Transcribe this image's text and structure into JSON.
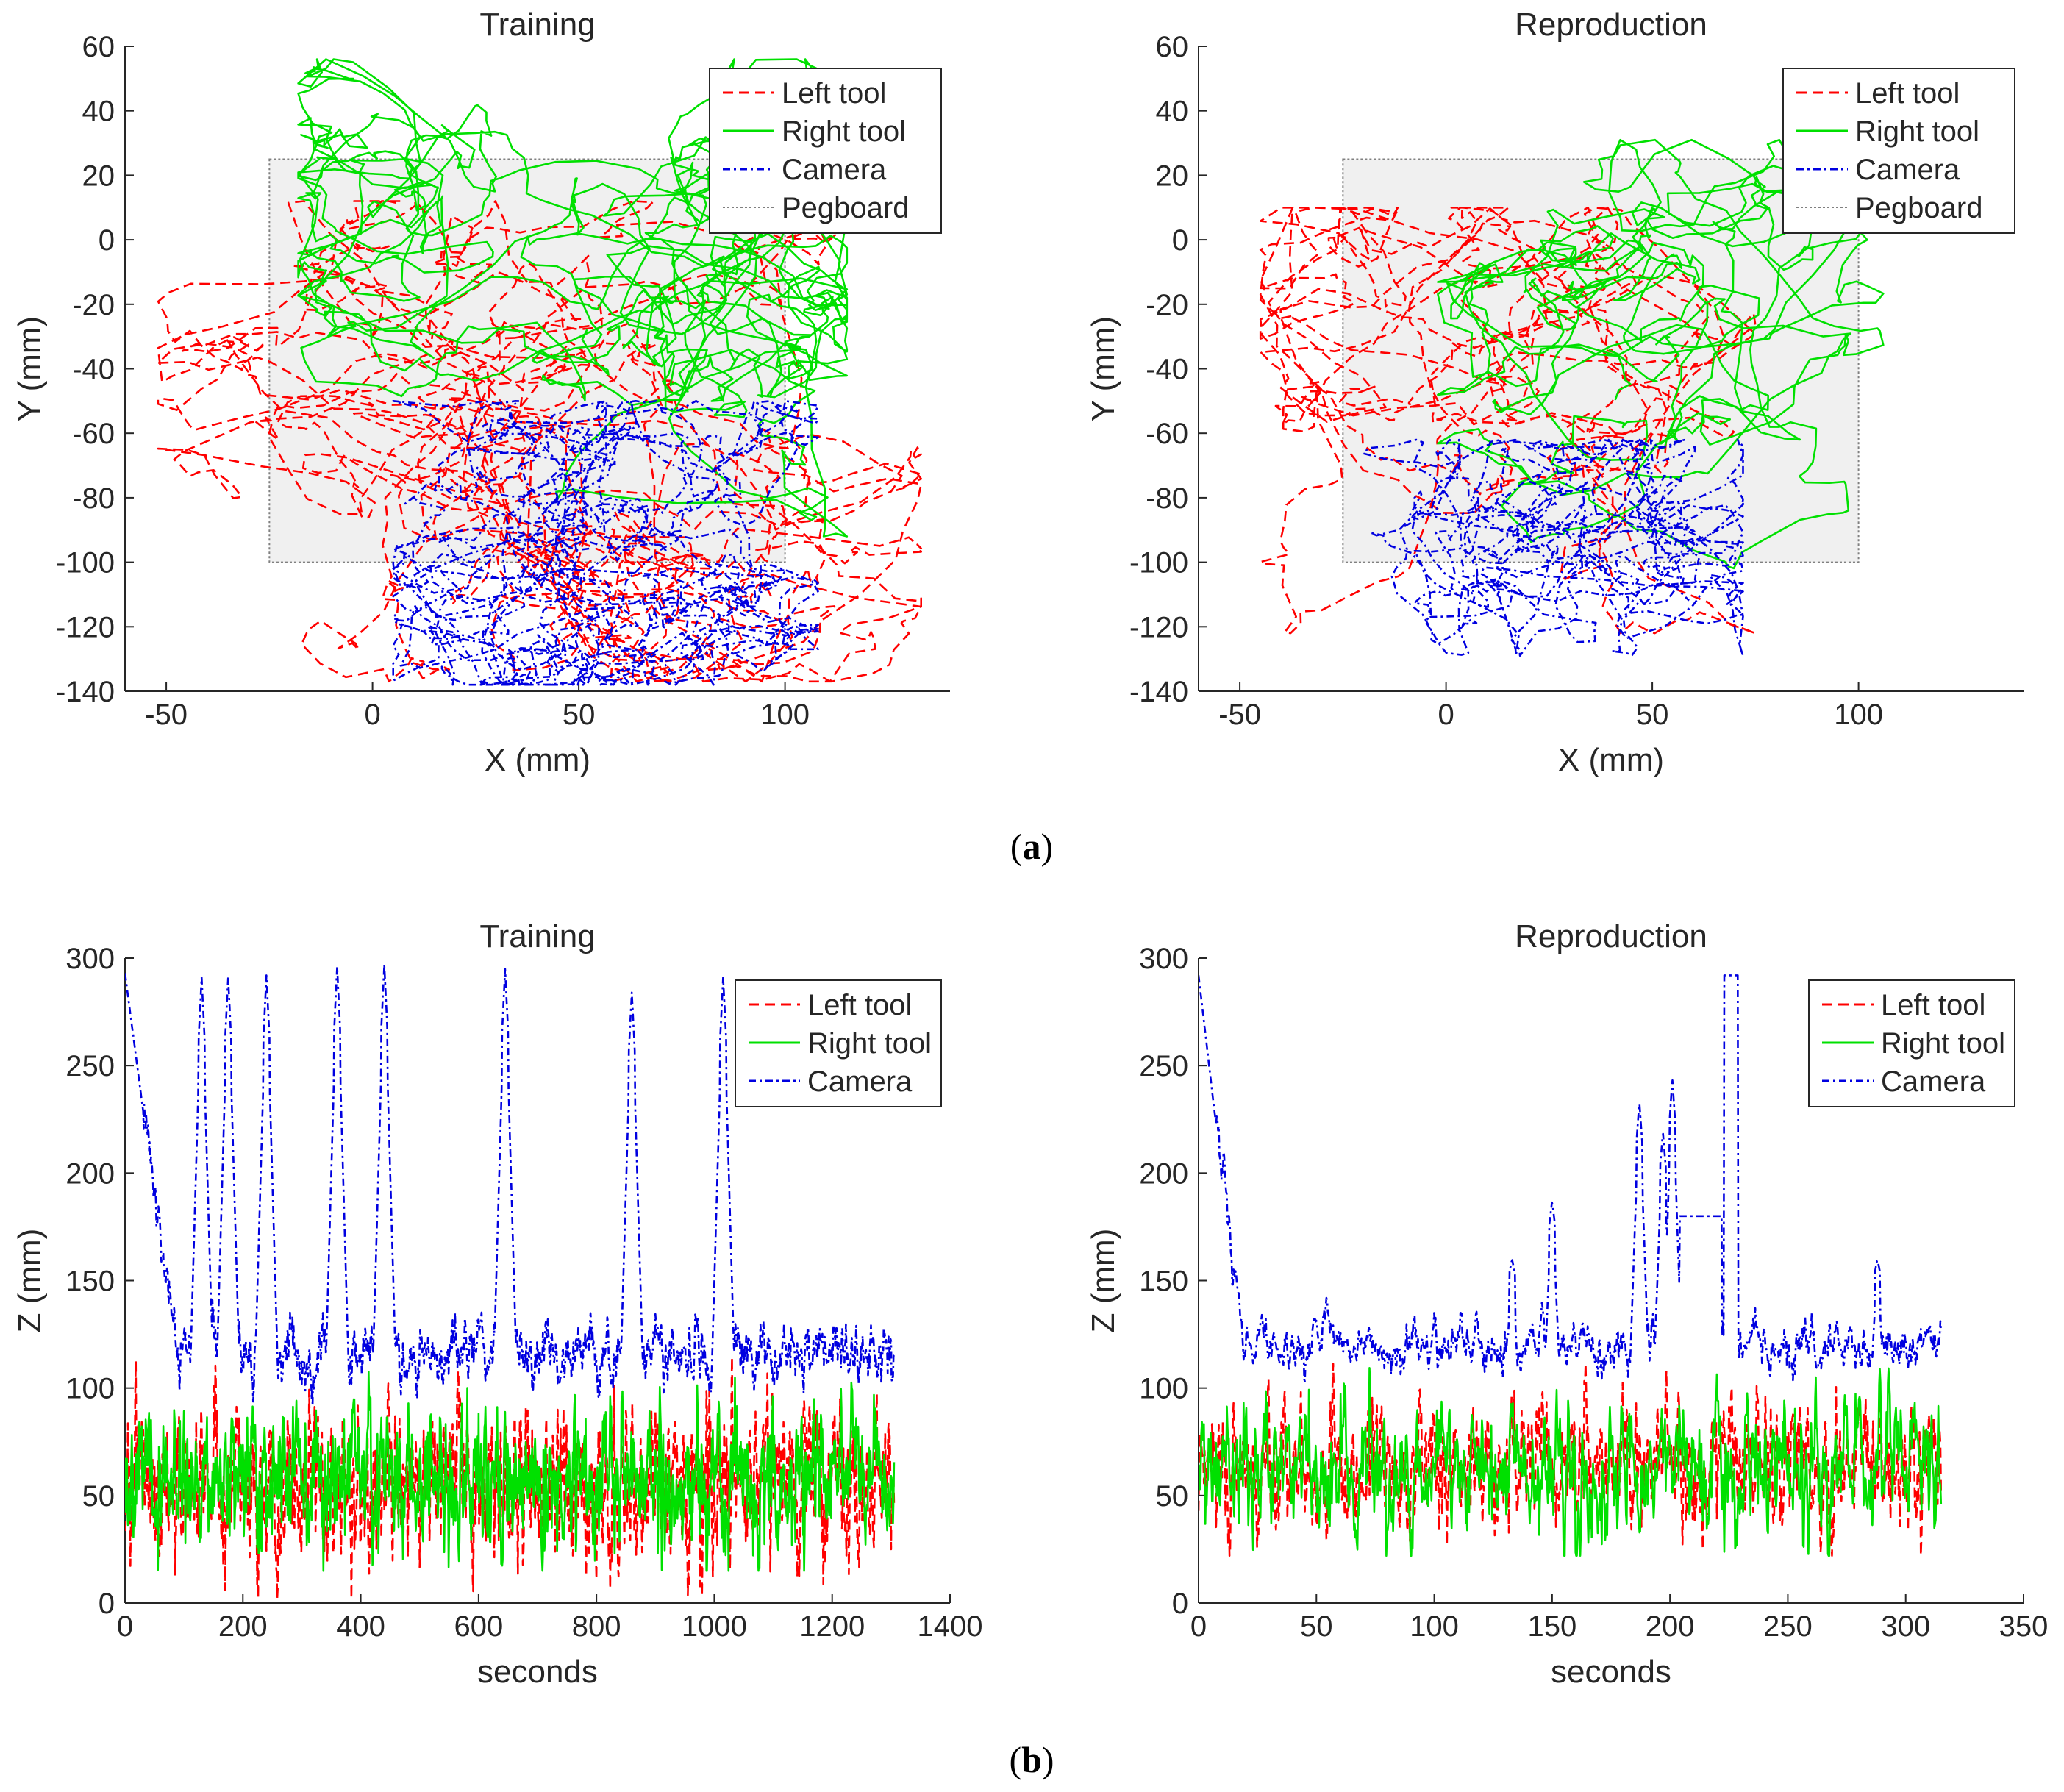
{
  "figure": {
    "caption_a_prefix": "(",
    "caption_a_letter": "a",
    "caption_a_suffix": ")",
    "caption_b_prefix": "(",
    "caption_b_letter": "b",
    "caption_b_suffix": ")"
  },
  "colors": {
    "left_tool": "#ff0000",
    "right_tool": "#00e000",
    "camera": "#0000e0",
    "pegboard_fill": "#f0f0f0",
    "pegboard_edge": "#808080"
  },
  "chart_data": [
    {
      "id": "xy-training",
      "type": "line",
      "title": "Training",
      "xlabel": "X (mm)",
      "ylabel": "Y (mm)",
      "xlim": [
        -60,
        140
      ],
      "ylim": [
        -140,
        60
      ],
      "xticks": [
        -50,
        0,
        50,
        100
      ],
      "yticks": [
        -140,
        -120,
        -100,
        -80,
        -60,
        -40,
        -20,
        0,
        20,
        40,
        60
      ],
      "legend": [
        "Left tool",
        "Right tool",
        "Camera",
        "Pegboard"
      ],
      "legend_position": "top-right",
      "pegboard": {
        "x0": -25,
        "x1": 100,
        "y0": -100,
        "y1": 25
      },
      "series": [
        {
          "name": "Left tool",
          "style": "dashed",
          "center": [
            45,
            -45
          ],
          "spread": [
            55,
            45
          ],
          "xrange": [
            -52,
            133
          ],
          "yrange": [
            -137,
            12
          ],
          "n": 1300,
          "seed": 11,
          "step": 7
        },
        {
          "name": "Right tool",
          "style": "solid",
          "center": [
            55,
            -25
          ],
          "spread": [
            40,
            30
          ],
          "xrange": [
            -18,
            115
          ],
          "yrange": [
            -92,
            56
          ],
          "n": 1300,
          "seed": 23,
          "step": 6
        },
        {
          "name": "Camera",
          "style": "dashdot",
          "center": [
            55,
            -100
          ],
          "spread": [
            30,
            18
          ],
          "xrange": [
            5,
            108
          ],
          "yrange": [
            -138,
            -50
          ],
          "n": 1300,
          "seed": 37,
          "step": 5
        }
      ]
    },
    {
      "id": "xy-reproduction",
      "type": "line",
      "title": "Reproduction",
      "xlabel": "X (mm)",
      "ylabel": "Y (mm)",
      "xlim": [
        -60,
        140
      ],
      "ylim": [
        -140,
        60
      ],
      "xticks": [
        -50,
        0,
        50,
        100
      ],
      "yticks": [
        -140,
        -120,
        -100,
        -80,
        -60,
        -40,
        -20,
        0,
        20,
        40,
        60
      ],
      "legend": [
        "Left tool",
        "Right tool",
        "Camera",
        "Pegboard"
      ],
      "legend_position": "top-right",
      "pegboard": {
        "x0": -25,
        "x1": 100,
        "y0": -100,
        "y1": 25
      },
      "series": [
        {
          "name": "Left tool",
          "style": "dashed",
          "center": [
            15,
            -40
          ],
          "spread": [
            35,
            35
          ],
          "xrange": [
            -45,
            75
          ],
          "yrange": [
            -122,
            10
          ],
          "n": 700,
          "seed": 51,
          "step": 7
        },
        {
          "name": "Right tool",
          "style": "solid",
          "center": [
            35,
            -35
          ],
          "spread": [
            30,
            35
          ],
          "xrange": [
            -2,
            106
          ],
          "yrange": [
            -110,
            31
          ],
          "n": 700,
          "seed": 63,
          "step": 6
        },
        {
          "name": "Camera",
          "style": "dashdot",
          "center": [
            35,
            -95
          ],
          "spread": [
            25,
            15
          ],
          "xrange": [
            -20,
            72
          ],
          "yrange": [
            -129,
            -62
          ],
          "n": 800,
          "seed": 77,
          "step": 5
        }
      ]
    },
    {
      "id": "z-training",
      "type": "line",
      "title": "Training",
      "xlabel": "seconds",
      "ylabel": "Z (mm)",
      "xlim": [
        0,
        1400
      ],
      "ylim": [
        0,
        300
      ],
      "xticks": [
        0,
        200,
        400,
        600,
        800,
        1000,
        1200,
        1400
      ],
      "yticks": [
        0,
        50,
        100,
        150,
        200,
        250,
        300
      ],
      "legend": [
        "Left tool",
        "Right tool",
        "Camera"
      ],
      "legend_position": "top-right",
      "duration": 1305,
      "series": [
        {
          "name": "Left tool",
          "style": "dashed",
          "base": 55,
          "amp": 16,
          "min": 2,
          "max": 117,
          "seed": 101
        },
        {
          "name": "Right tool",
          "style": "solid",
          "base": 57,
          "amp": 14,
          "min": 15,
          "max": 113,
          "seed": 131
        },
        {
          "name": "Camera",
          "style": "dashdot",
          "start": 293,
          "decay_to": 130,
          "base": 115,
          "amp": 14,
          "min": 68,
          "max": 297,
          "seed": 151,
          "peaks": [
            [
              130,
              291
            ],
            [
              175,
              291
            ],
            [
              240,
              292
            ],
            [
              360,
              296
            ],
            [
              440,
              297
            ],
            [
              645,
              295
            ],
            [
              860,
              284
            ],
            [
              1015,
              291
            ]
          ]
        }
      ]
    },
    {
      "id": "z-reproduction",
      "type": "line",
      "title": "Reproduction",
      "xlabel": "seconds",
      "ylabel": "Z (mm)",
      "xlim": [
        0,
        350
      ],
      "ylim": [
        0,
        300
      ],
      "xticks": [
        0,
        50,
        100,
        150,
        200,
        250,
        300,
        350
      ],
      "yticks": [
        0,
        50,
        100,
        150,
        200,
        250,
        300
      ],
      "legend": [
        "Left tool",
        "Right tool",
        "Camera"
      ],
      "legend_position": "top-right",
      "duration": 315,
      "series": [
        {
          "name": "Left tool",
          "style": "dashed",
          "base": 62,
          "amp": 14,
          "min": 22,
          "max": 119,
          "seed": 201
        },
        {
          "name": "Right tool",
          "style": "solid",
          "base": 62,
          "amp": 14,
          "min": 22,
          "max": 119,
          "seed": 231
        },
        {
          "name": "Camera",
          "style": "dashdot",
          "start": 292,
          "decay_to": 115,
          "base": 118,
          "amp": 12,
          "min": 95,
          "max": 292,
          "seed": 251,
          "peaks": [
            [
              187,
              233
            ],
            [
              197,
              219
            ],
            [
              201,
              244
            ],
            [
              150,
              187
            ],
            [
              133,
              160
            ],
            [
              288,
              160
            ]
          ],
          "plateaus": [
            [
              204,
              222,
              180
            ],
            [
              223,
              229,
              292
            ]
          ]
        }
      ]
    }
  ]
}
